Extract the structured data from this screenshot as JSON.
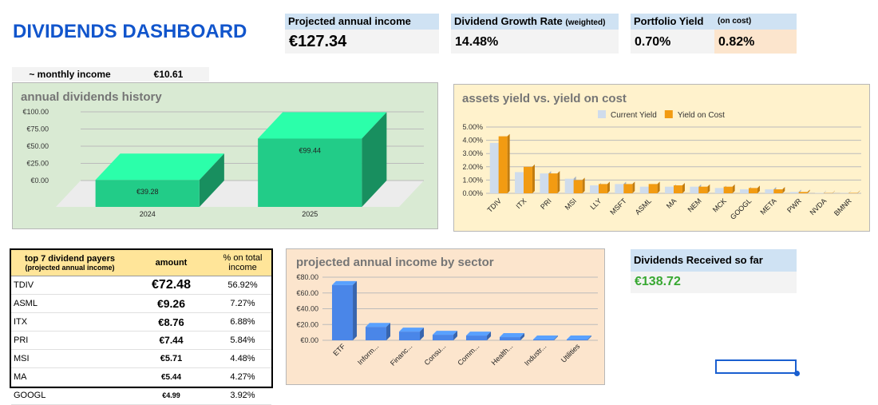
{
  "header": {
    "title": "DIVIDENDS DASHBOARD"
  },
  "kpis": {
    "projected_income": {
      "label": "Projected annual income",
      "value": "€127.34"
    },
    "growth_rate": {
      "label": "Dividend Growth Rate",
      "note": "(weighted)",
      "value": "14.48%"
    },
    "portfolio_yield": {
      "label": "Portfolio Yield",
      "note": "(on cost)",
      "value": "0.70%",
      "value_on_cost": "0.82%"
    },
    "monthly_income": {
      "label": "~ monthly income",
      "value": "€10.61"
    },
    "received": {
      "label": "Dividends Received so far",
      "value": "€138.72"
    }
  },
  "table": {
    "headers": {
      "title": "top 7 dividend payers",
      "subtitle": "(projected annual income)",
      "amount": "amount",
      "share": "% on total income"
    },
    "rows": [
      [
        "TDIV",
        "€72.48",
        "56.92%"
      ],
      [
        "ASML",
        "€9.26",
        "7.27%"
      ],
      [
        "ITX",
        "€8.76",
        "6.88%"
      ],
      [
        "PRI",
        "€7.44",
        "5.84%"
      ],
      [
        "MSI",
        "€5.71",
        "4.48%"
      ],
      [
        "MA",
        "€5.44",
        "4.27%"
      ],
      [
        "GOOGL",
        "€4.99",
        "3.92%"
      ]
    ]
  },
  "chart_data": [
    {
      "type": "bar3d",
      "title": "annual dividends history",
      "categories": [
        "2024",
        "2025"
      ],
      "values": [
        39.28,
        99.44
      ],
      "value_labels": [
        "€39.28",
        "€99.44"
      ],
      "color": "#22cc88",
      "ylim": [
        0,
        100
      ],
      "yticks": [
        {
          "value": 0,
          "label": "€0.00"
        },
        {
          "value": 25,
          "label": "€25.00"
        },
        {
          "value": 50,
          "label": "€50.00"
        },
        {
          "value": 75,
          "label": "€75.00"
        },
        {
          "value": 100,
          "label": "€100.00"
        }
      ],
      "grid": true
    },
    {
      "type": "grouped_bar",
      "title": "assets yield vs. yield on cost",
      "categories": [
        "TDIV",
        "ITX",
        "PRI",
        "MSI",
        "LLY",
        "MSFT",
        "ASML",
        "MA",
        "NEM",
        "MCK",
        "GOOGL",
        "META",
        "PWR",
        "NVDA",
        "BMNR"
      ],
      "series": [
        {
          "name": "Current Yield",
          "color": "#cfdcec",
          "values": [
            3.8,
            1.6,
            1.5,
            1.1,
            0.6,
            0.7,
            0.5,
            0.5,
            0.5,
            0.4,
            0.3,
            0.3,
            0.1,
            0.03,
            0.02
          ]
        },
        {
          "name": "Yield on Cost",
          "color": "#f29b12",
          "values": [
            4.3,
            2.0,
            1.5,
            1.0,
            0.7,
            0.7,
            0.7,
            0.6,
            0.5,
            0.5,
            0.4,
            0.3,
            0.1,
            0.02,
            0.03
          ]
        }
      ],
      "ylim": [
        0,
        5
      ],
      "yticks": [
        {
          "value": 0,
          "label": "0.00%"
        },
        {
          "value": 1,
          "label": "1.00%"
        },
        {
          "value": 2,
          "label": "2.00%"
        },
        {
          "value": 3,
          "label": "3.00%"
        },
        {
          "value": 4,
          "label": "4.00%"
        },
        {
          "value": 5,
          "label": "5.00%"
        }
      ],
      "grid": true,
      "legend": "top"
    },
    {
      "type": "bar3d_small",
      "title": "projected annual income by sector",
      "categories": [
        "ETF",
        "Inform...",
        "Financ...",
        "Consu...",
        "Comm...",
        "Health...",
        "Industr...",
        "Utilities"
      ],
      "values": [
        70,
        17,
        11,
        7,
        6,
        4,
        1,
        1
      ],
      "color": "#4a86e8",
      "ylim": [
        0,
        80
      ],
      "yticks": [
        {
          "value": 0,
          "label": "€0.00"
        },
        {
          "value": 20,
          "label": "€20.00"
        },
        {
          "value": 40,
          "label": "€40.00"
        },
        {
          "value": 60,
          "label": "€60.00"
        },
        {
          "value": 80,
          "label": "€80.00"
        }
      ],
      "grid": true
    }
  ]
}
